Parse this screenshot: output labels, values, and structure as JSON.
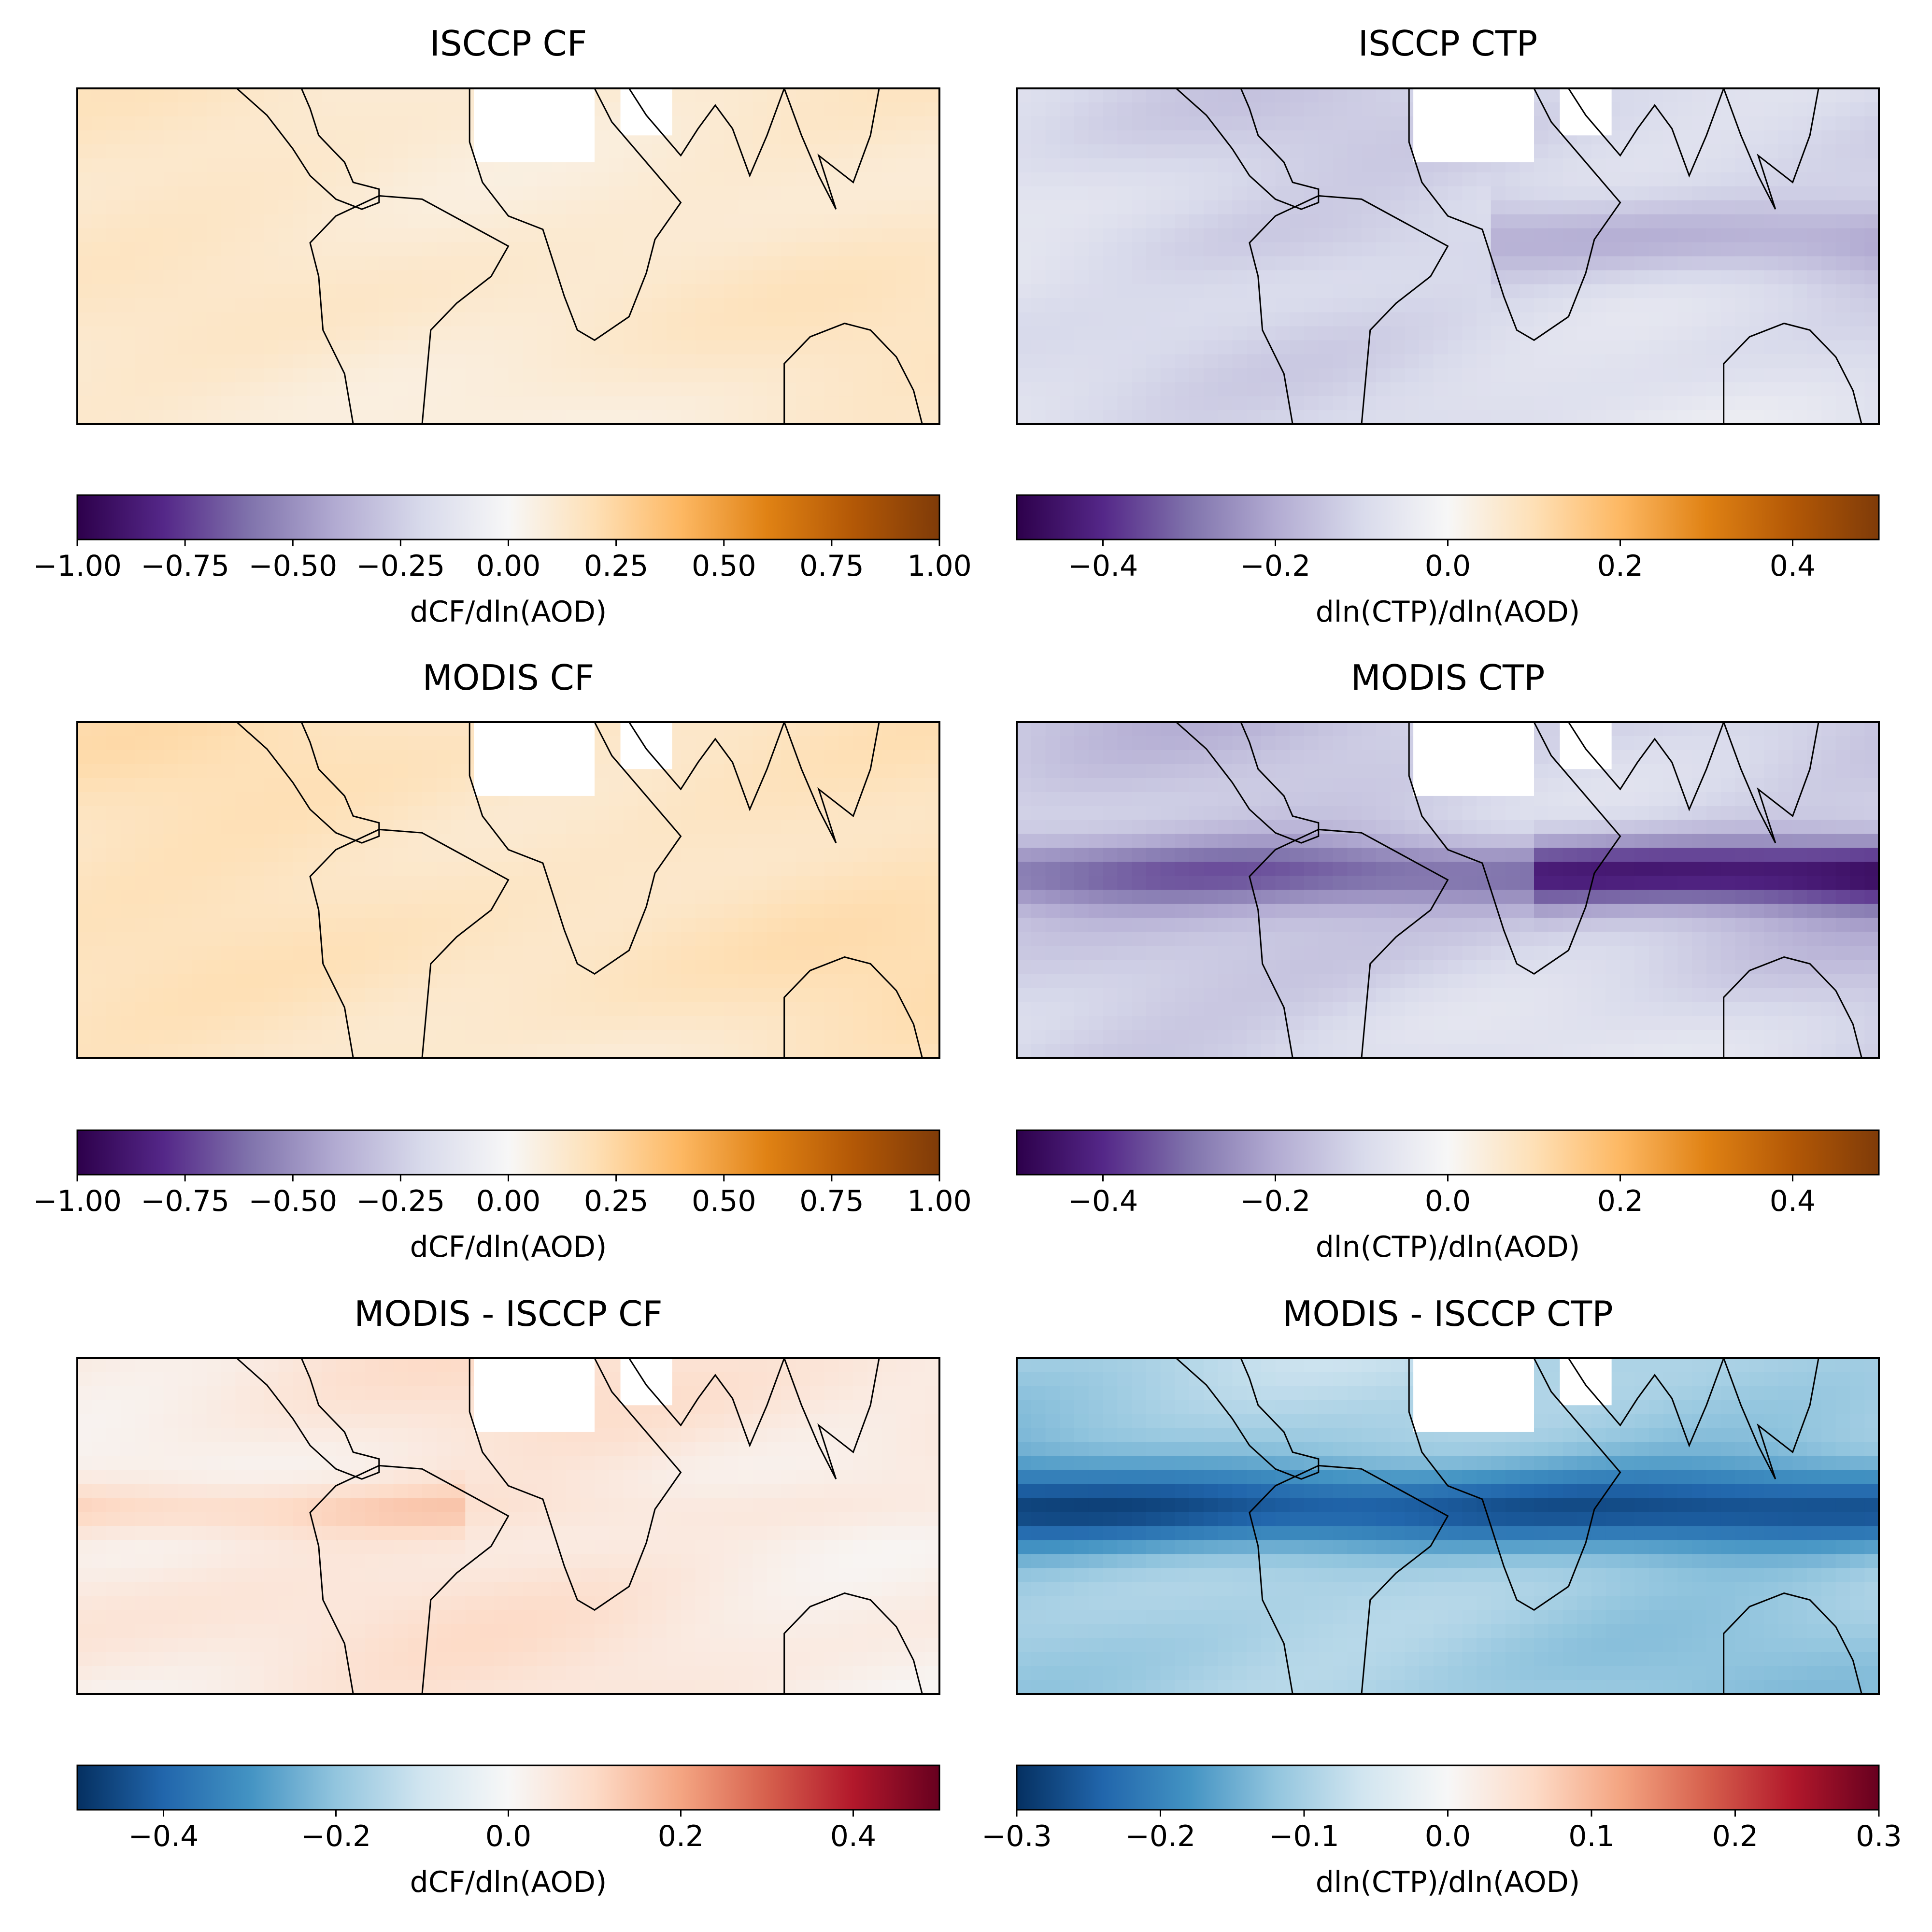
{
  "chart_data": [
    {
      "type": "heatmap",
      "title": "ISCCP CF",
      "colormap": "PuOr_r",
      "colorbar_label": "dCF/dln(AOD)",
      "vlim": [
        -1.0,
        1.0
      ],
      "colorbar_ticks": [
        "−1.00",
        "−0.75",
        "−0.50",
        "−0.25",
        "0.00",
        "0.25",
        "0.50",
        "0.75",
        "1.00"
      ],
      "colorbar_tick_values": [
        -1.0,
        -0.75,
        -0.5,
        -0.25,
        0.0,
        0.25,
        0.5,
        0.75,
        1.0
      ],
      "grid": false
    },
    {
      "type": "heatmap",
      "title": "ISCCP CTP",
      "colormap": "PuOr_r",
      "colorbar_label": "dln(CTP)/dln(AOD)",
      "vlim": [
        -0.5,
        0.5
      ],
      "colorbar_ticks": [
        "−0.4",
        "−0.2",
        "0.0",
        "0.2",
        "0.4"
      ],
      "colorbar_tick_values": [
        -0.4,
        -0.2,
        0.0,
        0.2,
        0.4
      ],
      "grid": false
    },
    {
      "type": "heatmap",
      "title": "MODIS CF",
      "colormap": "PuOr_r",
      "colorbar_label": "dCF/dln(AOD)",
      "vlim": [
        -1.0,
        1.0
      ],
      "colorbar_ticks": [
        "−1.00",
        "−0.75",
        "−0.50",
        "−0.25",
        "0.00",
        "0.25",
        "0.50",
        "0.75",
        "1.00"
      ],
      "colorbar_tick_values": [
        -1.0,
        -0.75,
        -0.5,
        -0.25,
        0.0,
        0.25,
        0.5,
        0.75,
        1.0
      ],
      "grid": false
    },
    {
      "type": "heatmap",
      "title": "MODIS CTP",
      "colormap": "PuOr_r",
      "colorbar_label": "dln(CTP)/dln(AOD)",
      "vlim": [
        -0.5,
        0.5
      ],
      "colorbar_ticks": [
        "−0.4",
        "−0.2",
        "0.0",
        "0.2",
        "0.4"
      ],
      "colorbar_tick_values": [
        -0.4,
        -0.2,
        0.0,
        0.2,
        0.4
      ],
      "grid": false
    },
    {
      "type": "heatmap",
      "title": "MODIS - ISCCP CF",
      "colormap": "RdBu_r",
      "colorbar_label": "dCF/dln(AOD)",
      "vlim": [
        -0.5,
        0.5
      ],
      "colorbar_ticks": [
        "−0.4",
        "−0.2",
        "0.0",
        "0.2",
        "0.4"
      ],
      "colorbar_tick_values": [
        -0.4,
        -0.2,
        0.0,
        0.2,
        0.4
      ],
      "grid": false
    },
    {
      "type": "heatmap",
      "title": "MODIS - ISCCP CTP",
      "colormap": "RdBu_r",
      "colorbar_label": "dln(CTP)/dln(AOD)",
      "vlim": [
        -0.3,
        0.3
      ],
      "colorbar_ticks": [
        "−0.3",
        "−0.2",
        "−0.1",
        "0.0",
        "0.1",
        "0.2",
        "0.3"
      ],
      "colorbar_tick_values": [
        -0.3,
        -0.2,
        -0.1,
        0.0,
        0.1,
        0.2,
        0.3
      ],
      "grid": false
    }
  ],
  "colormaps": {
    "PuOr_r": [
      "#2d004b",
      "#542788",
      "#8073ac",
      "#b2abd2",
      "#d8daeb",
      "#f7f7f7",
      "#fee0b6",
      "#fdb863",
      "#e08214",
      "#b35806",
      "#7f3b08"
    ],
    "RdBu_r": [
      "#053061",
      "#2166ac",
      "#4393c3",
      "#92c5de",
      "#d1e5f0",
      "#f7f7f7",
      "#fddbc7",
      "#f4a582",
      "#d6604d",
      "#b2182b",
      "#67001f"
    ]
  }
}
